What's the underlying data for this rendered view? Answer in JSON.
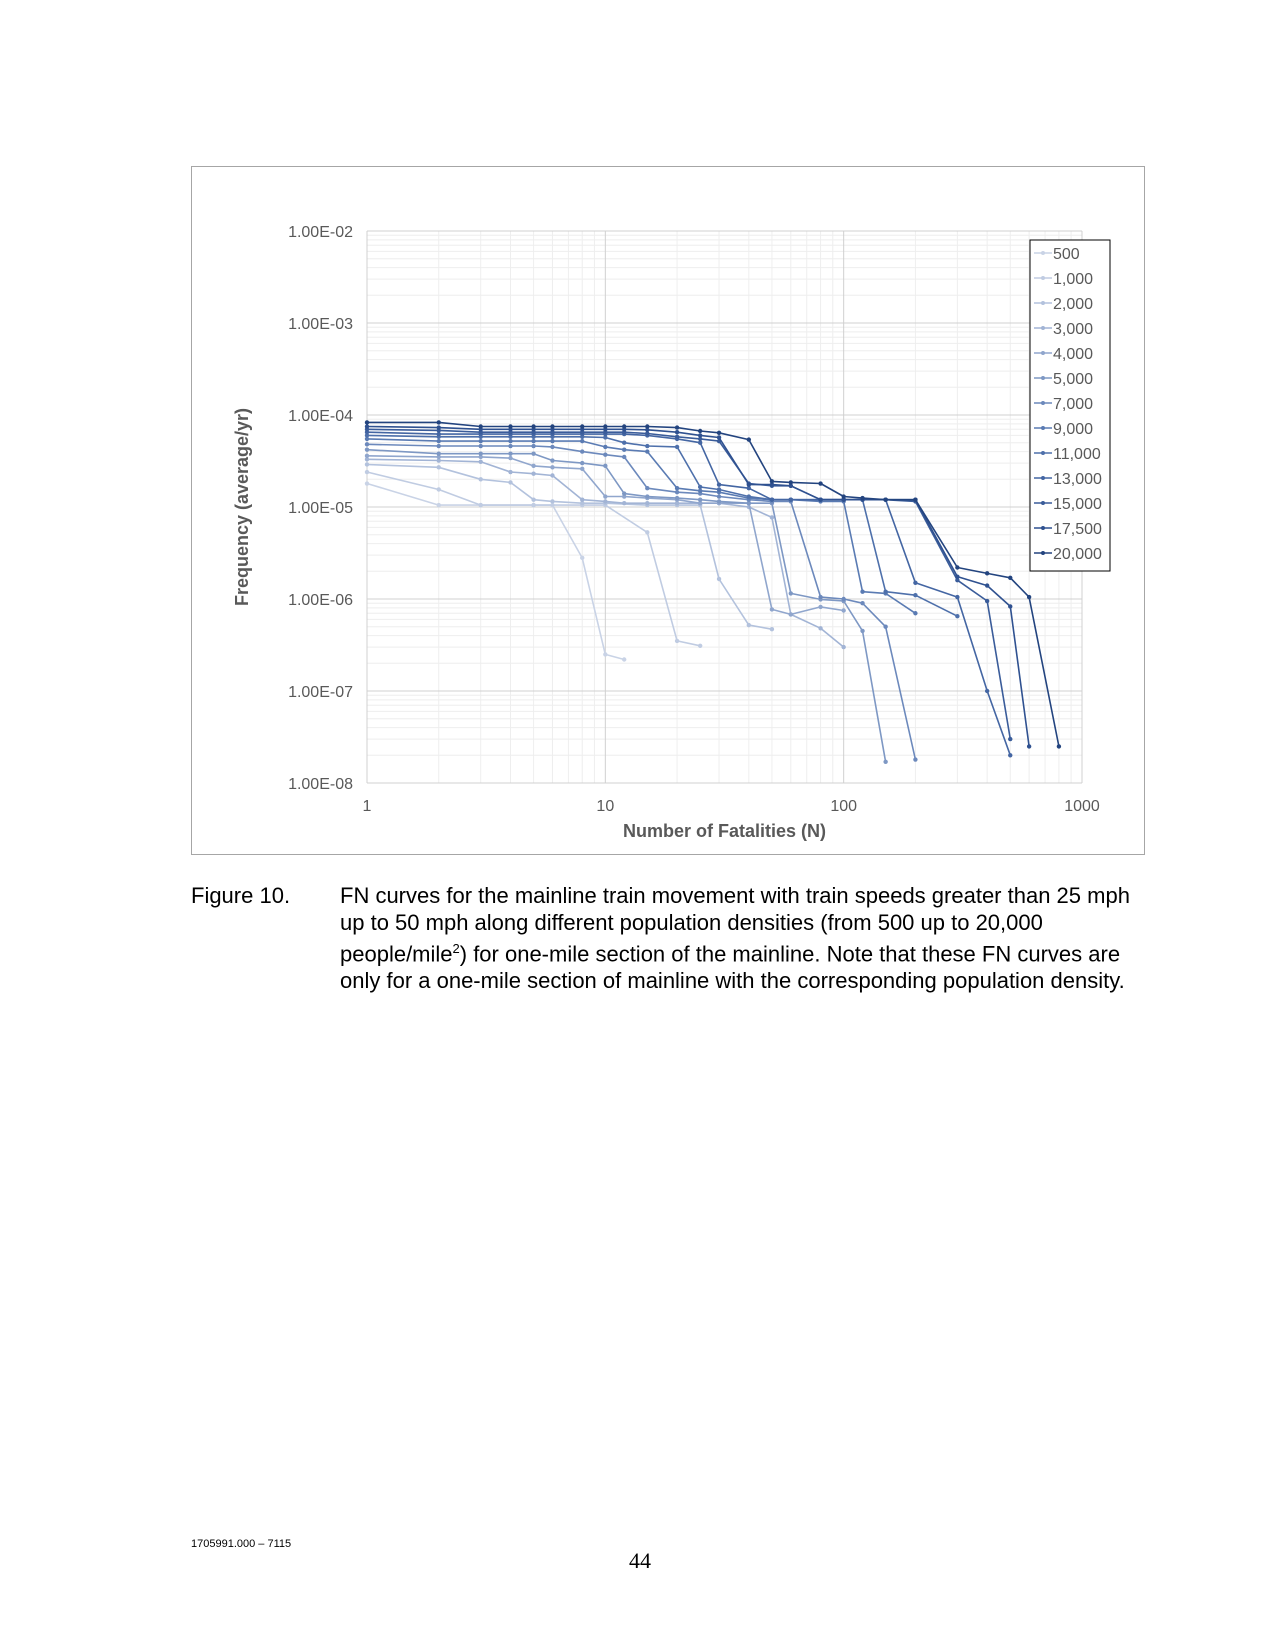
{
  "chart_data": {
    "type": "line",
    "title": "",
    "xlabel": "Number of Fatalities (N)",
    "ylabel": "Frequency (average/yr)",
    "x_scale": "log",
    "y_scale": "log",
    "xlim": [
      1,
      1000
    ],
    "ylim": [
      1e-08,
      0.01
    ],
    "x_tick_labels": [
      "1",
      "10",
      "100",
      "1000"
    ],
    "y_tick_labels": [
      "1.00E-02",
      "1.00E-03",
      "1.00E-04",
      "1.00E-05",
      "1.00E-06",
      "1.00E-07",
      "1.00E-08"
    ],
    "grid": true,
    "legend_position": "top-right",
    "series": [
      {
        "name": "500",
        "color": "#c9d3e6",
        "x": [
          1,
          2,
          3,
          5,
          6,
          8,
          10,
          12
        ],
        "y": [
          1.8e-05,
          1.05e-05,
          1.05e-05,
          1.05e-05,
          1.05e-05,
          2.8e-06,
          2.5e-07,
          2.2e-07
        ]
      },
      {
        "name": "1,000",
        "color": "#c0cce2",
        "x": [
          1,
          2,
          3,
          5,
          8,
          10,
          15,
          20,
          25
        ],
        "y": [
          2.4e-05,
          1.55e-05,
          1.05e-05,
          1.05e-05,
          1.05e-05,
          1.05e-05,
          5.3e-06,
          3.5e-07,
          3.1e-07
        ]
      },
      {
        "name": "2,000",
        "color": "#b3c2dd",
        "x": [
          1,
          2,
          3,
          4,
          5,
          6,
          8,
          10,
          15,
          20,
          25,
          30,
          40,
          50
        ],
        "y": [
          2.9e-05,
          2.7e-05,
          2e-05,
          1.85e-05,
          1.2e-05,
          1.15e-05,
          1.1e-05,
          1.1e-05,
          1.05e-05,
          1.05e-05,
          1.05e-05,
          1.65e-06,
          5.2e-07,
          4.7e-07
        ]
      },
      {
        "name": "3,000",
        "color": "#a2b4d5",
        "x": [
          1,
          2,
          3,
          4,
          5,
          6,
          8,
          10,
          12,
          15,
          20,
          25,
          30,
          40,
          50,
          60,
          80,
          100
        ],
        "y": [
          3.3e-05,
          3.2e-05,
          3.1e-05,
          2.4e-05,
          2.3e-05,
          2.2e-05,
          1.2e-05,
          1.15e-05,
          1.1e-05,
          1.1e-05,
          1.1e-05,
          1.1e-05,
          1.1e-05,
          1e-05,
          7.7e-06,
          6.8e-07,
          4.8e-07,
          3e-07
        ]
      },
      {
        "name": "4,000",
        "color": "#90a6cd",
        "x": [
          1,
          2,
          3,
          4,
          5,
          6,
          8,
          10,
          12,
          15,
          20,
          25,
          30,
          40,
          50,
          60,
          80,
          100
        ],
        "y": [
          3.6e-05,
          3.5e-05,
          3.5e-05,
          3.4e-05,
          2.8e-05,
          2.7e-05,
          2.6e-05,
          1.3e-05,
          1.3e-05,
          1.25e-05,
          1.2e-05,
          1.1e-05,
          1.1e-05,
          1.1e-05,
          7.7e-07,
          6.8e-07,
          8.2e-07,
          7.5e-07
        ]
      },
      {
        "name": "5,000",
        "color": "#7e98c4",
        "x": [
          1,
          2,
          3,
          4,
          5,
          6,
          8,
          10,
          12,
          15,
          20,
          25,
          30,
          40,
          50,
          60,
          80,
          100,
          120,
          150
        ],
        "y": [
          4.2e-05,
          3.8e-05,
          3.8e-05,
          3.8e-05,
          3.8e-05,
          3.2e-05,
          3e-05,
          2.8e-05,
          1.4e-05,
          1.3e-05,
          1.25e-05,
          1.2e-05,
          1.15e-05,
          1.1e-05,
          1.1e-05,
          1.15e-06,
          9.9e-07,
          9.5e-07,
          4.5e-07,
          1.7e-08
        ]
      },
      {
        "name": "7,000",
        "color": "#6c89bc",
        "x": [
          1,
          2,
          3,
          4,
          5,
          6,
          8,
          10,
          12,
          15,
          20,
          25,
          30,
          40,
          50,
          60,
          80,
          100,
          120,
          150,
          200
        ],
        "y": [
          4.8e-05,
          4.6e-05,
          4.6e-05,
          4.6e-05,
          4.6e-05,
          4.5e-05,
          4e-05,
          3.7e-05,
          3.5e-05,
          1.6e-05,
          1.45e-05,
          1.4e-05,
          1.3e-05,
          1.2e-05,
          1.15e-05,
          1.15e-05,
          1.05e-06,
          1e-06,
          9e-07,
          5e-07,
          1.8e-08
        ]
      },
      {
        "name": "9,000",
        "color": "#5a7bb3",
        "x": [
          1,
          2,
          3,
          4,
          5,
          6,
          8,
          10,
          12,
          15,
          20,
          25,
          30,
          40,
          50,
          60,
          80,
          100,
          120,
          150,
          200
        ],
        "y": [
          5.5e-05,
          5.2e-05,
          5.2e-05,
          5.2e-05,
          5.2e-05,
          5.2e-05,
          5.2e-05,
          4.5e-05,
          4.2e-05,
          4e-05,
          1.6e-05,
          1.5e-05,
          1.45e-05,
          1.25e-05,
          1.2e-05,
          1.2e-05,
          1.15e-05,
          1.15e-05,
          1.2e-06,
          1.15e-06,
          7e-07
        ]
      },
      {
        "name": "11,000",
        "color": "#4e70ab",
        "x": [
          1,
          2,
          3,
          4,
          5,
          6,
          8,
          10,
          12,
          15,
          20,
          25,
          30,
          40,
          50,
          60,
          80,
          100,
          120,
          150,
          200,
          300
        ],
        "y": [
          6e-05,
          5.8e-05,
          5.8e-05,
          5.8e-05,
          5.8e-05,
          5.8e-05,
          5.8e-05,
          5.7e-05,
          5e-05,
          4.6e-05,
          4.5e-05,
          1.65e-05,
          1.55e-05,
          1.3e-05,
          1.2e-05,
          1.2e-05,
          1.2e-05,
          1.2e-05,
          1.2e-05,
          1.2e-06,
          1.1e-06,
          6.5e-07
        ]
      },
      {
        "name": "13,000",
        "color": "#4466a3",
        "x": [
          1,
          2,
          3,
          4,
          5,
          6,
          8,
          10,
          12,
          15,
          20,
          25,
          30,
          40,
          50,
          60,
          80,
          100,
          120,
          150,
          200,
          300,
          400,
          500
        ],
        "y": [
          6.5e-05,
          6.2e-05,
          6.2e-05,
          6.2e-05,
          6.2e-05,
          6.2e-05,
          6.2e-05,
          6.2e-05,
          6.2e-05,
          6e-05,
          5.5e-05,
          5e-05,
          1.75e-05,
          1.6e-05,
          1.2e-05,
          1.2e-05,
          1.2e-05,
          1.2e-05,
          1.2e-05,
          1.2e-05,
          1.5e-06,
          1.05e-06,
          1e-07,
          2e-08
        ]
      },
      {
        "name": "15,000",
        "color": "#3a5c9a",
        "x": [
          1,
          2,
          3,
          4,
          5,
          6,
          8,
          10,
          12,
          15,
          20,
          25,
          30,
          40,
          50,
          60,
          80,
          100,
          120,
          150,
          200,
          300,
          400,
          500
        ],
        "y": [
          7e-05,
          6.8e-05,
          6.5e-05,
          6.5e-05,
          6.5e-05,
          6.5e-05,
          6.5e-05,
          6.5e-05,
          6.5e-05,
          6.3e-05,
          5.8e-05,
          5.5e-05,
          5.2e-05,
          1.8e-05,
          1.7e-05,
          1.7e-05,
          1.2e-05,
          1.2e-05,
          1.2e-05,
          1.2e-05,
          1.15e-05,
          1.6e-06,
          9.5e-07,
          3e-08
        ]
      },
      {
        "name": "17,500",
        "color": "#2f5190",
        "x": [
          1,
          2,
          3,
          4,
          5,
          6,
          8,
          10,
          12,
          15,
          20,
          25,
          30,
          40,
          50,
          60,
          80,
          100,
          120,
          150,
          200,
          300,
          400,
          500,
          600
        ],
        "y": [
          7.5e-05,
          7.3e-05,
          7e-05,
          7e-05,
          7e-05,
          7e-05,
          7e-05,
          7e-05,
          7e-05,
          6.9e-05,
          6.5e-05,
          6e-05,
          5.7e-05,
          1.75e-05,
          1.75e-05,
          1.7e-05,
          1.2e-05,
          1.2e-05,
          1.2e-05,
          1.2e-05,
          1.2e-05,
          1.75e-06,
          1.4e-06,
          8.3e-07,
          2.5e-08
        ]
      },
      {
        "name": "20,000",
        "color": "#23447f",
        "x": [
          1,
          2,
          3,
          4,
          5,
          6,
          8,
          10,
          12,
          15,
          20,
          25,
          30,
          40,
          50,
          60,
          80,
          100,
          120,
          150,
          200,
          300,
          400,
          500,
          600,
          800
        ],
        "y": [
          8.3e-05,
          8.3e-05,
          7.5e-05,
          7.5e-05,
          7.5e-05,
          7.5e-05,
          7.5e-05,
          7.5e-05,
          7.5e-05,
          7.5e-05,
          7.3e-05,
          6.7e-05,
          6.4e-05,
          5.4e-05,
          1.9e-05,
          1.85e-05,
          1.8e-05,
          1.3e-05,
          1.25e-05,
          1.2e-05,
          1.2e-05,
          2.2e-06,
          1.9e-06,
          1.7e-06,
          1.05e-06,
          2.5e-08
        ]
      }
    ]
  },
  "caption": {
    "label": "Figure 10.",
    "text_before_sup": "FN curves for the mainline train movement with train speeds greater than 25 mph up to 50 mph along different population densities (from 500 up to 20,000 people/mile",
    "sup": "2",
    "text_after_sup": ") for one-mile section of the mainline. Note that these FN curves are only for a one-mile section of mainline with the corresponding population density."
  },
  "footer": {
    "doc_id": "1705991.000 – 7115",
    "page_number": "44"
  }
}
